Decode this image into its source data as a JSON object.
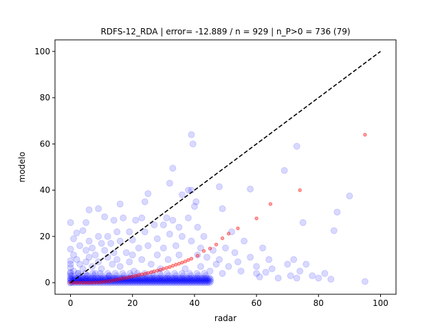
{
  "chart_data": {
    "type": "scatter",
    "title": "RDFS-12_RDA | error= -12.889 / n = 929 | n_P>0 = 736 (79)",
    "xlabel": "radar",
    "ylabel": "modelo",
    "xlim": [
      -5,
      105
    ],
    "ylim": [
      -5,
      105
    ],
    "xticks": [
      0,
      20,
      40,
      60,
      80,
      100
    ],
    "yticks": [
      0,
      20,
      40,
      60,
      80,
      100
    ],
    "grid": false,
    "legend": "none",
    "colors": {
      "observations": "#0000ff",
      "fit": "#ff0000",
      "identity_line": "#000000"
    },
    "series": [
      {
        "kind": "points",
        "color": "#0000ff",
        "alpha": 0.15,
        "points": [
          [
            0,
            26
          ],
          [
            0,
            14.5
          ],
          [
            0,
            9.5
          ],
          [
            0,
            8
          ],
          [
            0,
            6.5
          ],
          [
            0,
            4.5
          ],
          [
            0,
            3
          ],
          [
            0,
            1.5
          ],
          [
            0,
            0
          ],
          [
            1,
            19
          ],
          [
            1,
            12
          ],
          [
            1,
            5
          ],
          [
            2,
            21.5
          ],
          [
            2,
            10
          ],
          [
            2.5,
            4
          ],
          [
            3,
            16
          ],
          [
            3,
            8
          ],
          [
            3.5,
            2
          ],
          [
            4,
            22.5
          ],
          [
            4,
            6
          ],
          [
            5,
            26
          ],
          [
            5,
            14
          ],
          [
            5,
            9
          ],
          [
            5.5,
            3
          ],
          [
            6,
            31.5
          ],
          [
            6,
            18
          ],
          [
            6,
            11
          ],
          [
            7,
            15
          ],
          [
            7,
            7
          ],
          [
            8,
            12
          ],
          [
            8,
            4
          ],
          [
            9,
            32
          ],
          [
            9,
            20
          ],
          [
            9,
            9
          ],
          [
            10,
            17
          ],
          [
            10,
            6
          ],
          [
            11,
            28.5
          ],
          [
            11,
            14
          ],
          [
            12,
            20
          ],
          [
            12,
            11
          ],
          [
            12.5,
            3
          ],
          [
            13,
            17
          ],
          [
            13.5,
            8
          ],
          [
            14,
            27
          ],
          [
            14,
            13
          ],
          [
            15,
            22
          ],
          [
            15,
            10
          ],
          [
            16,
            34
          ],
          [
            16,
            18
          ],
          [
            16,
            7
          ],
          [
            17,
            28
          ],
          [
            18,
            13
          ],
          [
            19,
            22
          ],
          [
            19,
            9
          ],
          [
            20,
            18.5
          ],
          [
            20,
            12
          ],
          [
            20.5,
            5
          ],
          [
            21,
            27
          ],
          [
            22,
            15
          ],
          [
            23,
            28
          ],
          [
            23,
            10
          ],
          [
            24,
            35
          ],
          [
            24,
            22
          ],
          [
            25,
            38.5
          ],
          [
            25,
            16
          ],
          [
            26,
            8
          ],
          [
            27,
            25
          ],
          [
            28,
            19
          ],
          [
            28,
            12
          ],
          [
            29,
            6
          ],
          [
            30,
            25
          ],
          [
            30,
            15
          ],
          [
            31,
            28
          ],
          [
            31.5,
            10
          ],
          [
            32,
            43
          ],
          [
            32,
            21
          ],
          [
            33,
            49.5
          ],
          [
            33,
            27
          ],
          [
            34,
            16
          ],
          [
            35,
            24
          ],
          [
            35,
            12
          ],
          [
            36,
            38
          ],
          [
            36,
            20
          ],
          [
            37,
            6
          ],
          [
            38,
            40
          ],
          [
            38,
            28
          ],
          [
            39,
            64
          ],
          [
            39,
            40
          ],
          [
            39,
            18
          ],
          [
            39.5,
            60
          ],
          [
            40,
            33
          ],
          [
            40.5,
            35
          ],
          [
            41,
            24
          ],
          [
            41,
            12
          ],
          [
            42,
            15
          ],
          [
            42,
            7
          ],
          [
            43,
            20
          ],
          [
            44,
            11
          ],
          [
            45,
            5
          ],
          [
            46,
            14
          ],
          [
            47,
            8
          ],
          [
            48,
            41.5
          ],
          [
            48,
            10
          ],
          [
            49,
            32
          ],
          [
            49,
            4
          ],
          [
            50,
            15
          ],
          [
            51,
            7
          ],
          [
            52,
            22
          ],
          [
            53,
            13
          ],
          [
            54,
            9
          ],
          [
            55,
            5
          ],
          [
            56,
            18
          ],
          [
            58,
            40.5
          ],
          [
            58,
            11
          ],
          [
            60,
            7
          ],
          [
            60,
            4
          ],
          [
            61,
            2.5
          ],
          [
            62,
            15
          ],
          [
            63,
            4.5
          ],
          [
            64,
            10
          ],
          [
            65,
            6
          ],
          [
            67,
            2
          ],
          [
            69,
            48.5
          ],
          [
            70,
            8
          ],
          [
            71,
            3
          ],
          [
            72,
            10
          ],
          [
            73,
            59
          ],
          [
            73,
            2
          ],
          [
            74,
            5
          ],
          [
            75,
            26
          ],
          [
            76,
            8
          ],
          [
            78,
            3
          ],
          [
            80,
            2
          ],
          [
            82,
            4
          ],
          [
            84,
            1.5
          ],
          [
            85,
            22.5
          ],
          [
            86,
            30.5
          ],
          [
            90,
            37.5
          ],
          [
            95,
            0.5
          ]
        ],
        "dense_band": {
          "x_range": [
            0,
            45
          ],
          "y_values": [
            0,
            0.5,
            1,
            1.5,
            2,
            3,
            4
          ]
        }
      },
      {
        "kind": "fit",
        "color": "#ff0000",
        "alpha": 0.35,
        "points": [
          [
            0,
            0
          ],
          [
            1,
            0
          ],
          [
            2,
            0
          ],
          [
            3,
            0
          ],
          [
            4,
            0
          ],
          [
            5,
            0
          ],
          [
            6,
            0
          ],
          [
            7,
            0
          ],
          [
            8,
            0.1
          ],
          [
            9,
            0.1
          ],
          [
            10,
            0.3
          ],
          [
            11,
            0.4
          ],
          [
            12,
            0.6
          ],
          [
            13,
            0.8
          ],
          [
            14,
            1.1
          ],
          [
            15,
            1.3
          ],
          [
            16,
            1.6
          ],
          [
            17,
            1.9
          ],
          [
            18,
            2.1
          ],
          [
            19,
            2.4
          ],
          [
            20,
            2.7
          ],
          [
            21,
            3.0
          ],
          [
            22,
            3.3
          ],
          [
            23,
            3.6
          ],
          [
            24,
            3.9
          ],
          [
            25,
            4.2
          ],
          [
            26,
            4.5
          ],
          [
            27,
            4.9
          ],
          [
            28,
            5.2
          ],
          [
            29,
            5.6
          ],
          [
            30,
            6.0
          ],
          [
            31,
            6.4
          ],
          [
            32,
            6.8
          ],
          [
            33,
            7.3
          ],
          [
            34,
            7.8
          ],
          [
            35,
            8.2
          ],
          [
            36,
            8.7
          ],
          [
            37,
            9.2
          ],
          [
            38,
            9.8
          ],
          [
            39,
            10.4
          ],
          [
            41,
            11.7
          ],
          [
            43,
            13.7
          ],
          [
            45,
            14.8
          ],
          [
            47,
            16.5
          ],
          [
            49,
            19.2
          ],
          [
            51,
            21.2
          ],
          [
            54,
            23.5
          ],
          [
            60,
            27.8
          ],
          [
            64.5,
            34
          ],
          [
            74,
            40
          ],
          [
            95,
            64
          ]
        ]
      },
      {
        "kind": "identity-line",
        "color": "#000000",
        "dashed": true,
        "points": [
          [
            0,
            0
          ],
          [
            100,
            100
          ]
        ]
      }
    ]
  }
}
